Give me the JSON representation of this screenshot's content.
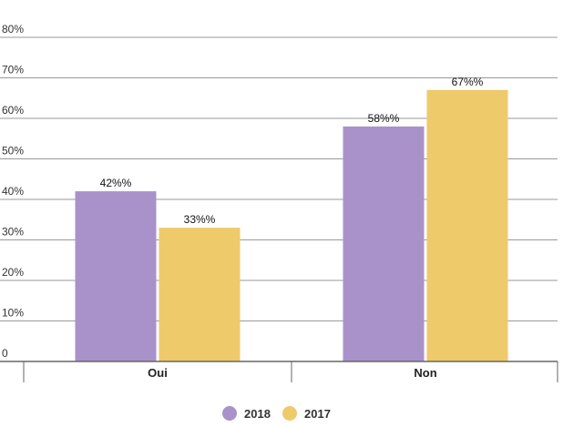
{
  "chart_data": {
    "type": "bar",
    "categories": [
      "Oui",
      "Non"
    ],
    "series": [
      {
        "name": "2018",
        "values": [
          42,
          58
        ],
        "color": "#A992C9",
        "labels": [
          "42%%",
          "58%%"
        ]
      },
      {
        "name": "2017",
        "values": [
          33,
          67
        ],
        "color": "#EFCA6B",
        "labels": [
          "33%%",
          "67%%"
        ]
      }
    ],
    "y_ticks": [
      {
        "value": 0,
        "label": "0"
      },
      {
        "value": 10,
        "label": "10%"
      },
      {
        "value": 20,
        "label": "20%"
      },
      {
        "value": 30,
        "label": "30%"
      },
      {
        "value": 40,
        "label": "40%"
      },
      {
        "value": 50,
        "label": "50%"
      },
      {
        "value": 60,
        "label": "60%"
      },
      {
        "value": 70,
        "label": "70%"
      },
      {
        "value": 80,
        "label": "80%"
      }
    ],
    "ylim": [
      0,
      80
    ],
    "grid": true,
    "legend_position": "bottom-center",
    "colors": {
      "gridline": "#9a9a9a",
      "axis": "#666666"
    }
  }
}
